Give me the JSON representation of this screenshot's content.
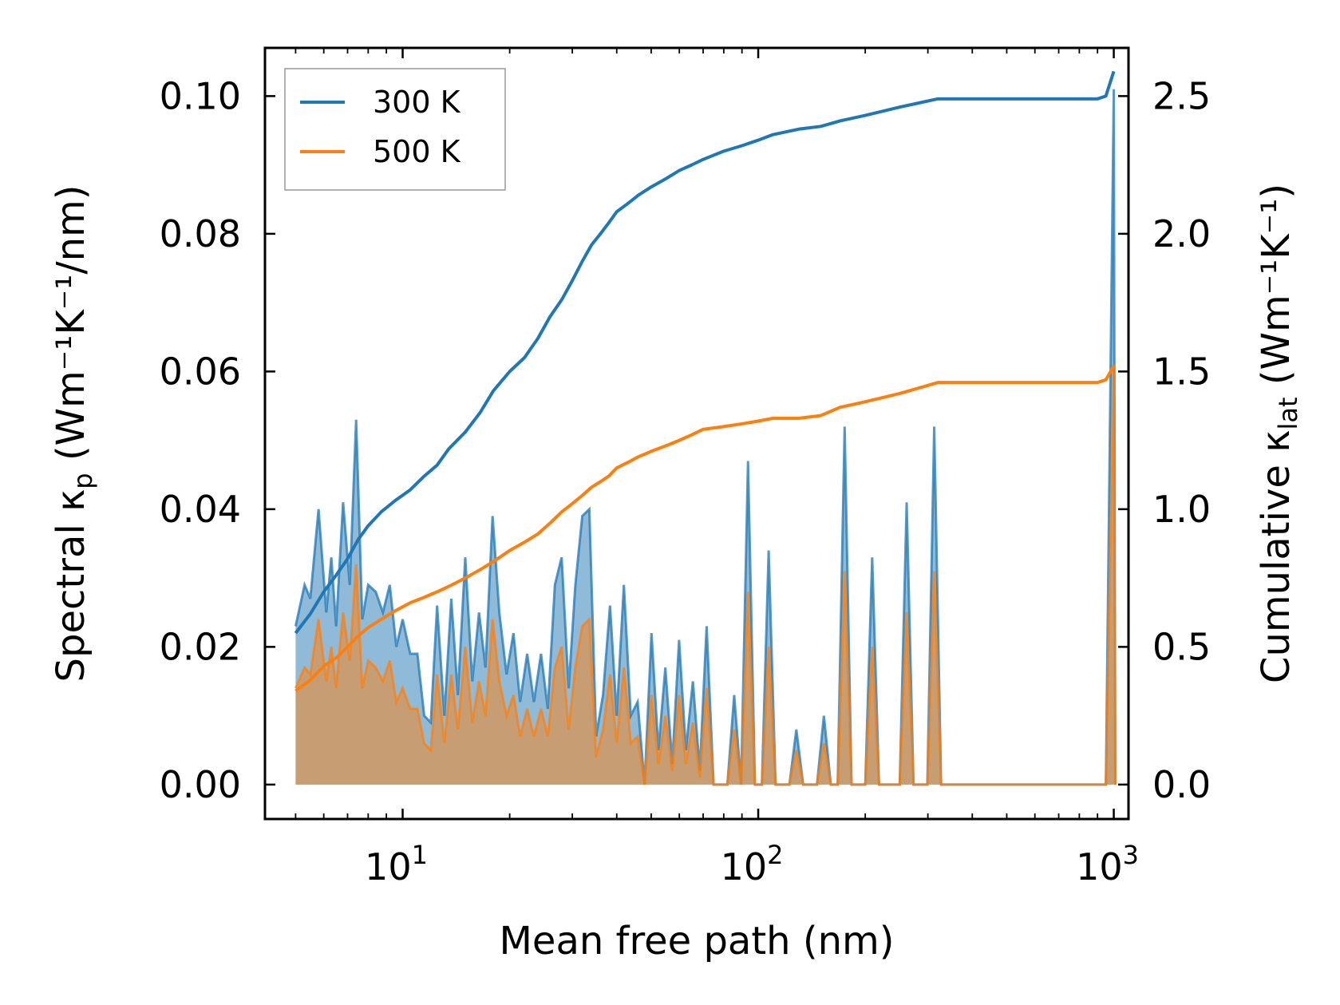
{
  "chart_data": {
    "type": "line",
    "xlabel": "Mean free path (nm)",
    "ylabel_left": {
      "main": "Spectral κ",
      "sub": "p",
      "units": " (Wm⁻¹K⁻¹/nm)"
    },
    "ylabel_right": {
      "main": "Cumulative κ",
      "sub": "lat",
      "units": " (Wm⁻¹K⁻¹)"
    },
    "xscale": "log",
    "xlim": [
      4.1,
      1100
    ],
    "ylim_left": [
      -0.005,
      0.107
    ],
    "ylim_right": [
      -0.125,
      2.675
    ],
    "x_ticks": [
      {
        "value": 10,
        "label": "10",
        "exp": "1"
      },
      {
        "value": 100,
        "label": "10",
        "exp": "2"
      },
      {
        "value": 1000,
        "label": "10",
        "exp": "3"
      }
    ],
    "y_ticks_left": [
      {
        "value": 0.0,
        "label": "0.00"
      },
      {
        "value": 0.02,
        "label": "0.02"
      },
      {
        "value": 0.04,
        "label": "0.04"
      },
      {
        "value": 0.06,
        "label": "0.06"
      },
      {
        "value": 0.08,
        "label": "0.08"
      },
      {
        "value": 0.1,
        "label": "0.10"
      }
    ],
    "y_ticks_right": [
      {
        "value": 0.0,
        "label": "0.0"
      },
      {
        "value": 0.5,
        "label": "0.5"
      },
      {
        "value": 1.0,
        "label": "1.0"
      },
      {
        "value": 1.5,
        "label": "1.5"
      },
      {
        "value": 2.0,
        "label": "2.0"
      },
      {
        "value": 2.5,
        "label": "2.5"
      }
    ],
    "legend": {
      "placement": "top-left",
      "entries": [
        {
          "label": "300 K",
          "color": "#1f77b4"
        },
        {
          "label": "500 K",
          "color": "#ff7f0e"
        }
      ]
    },
    "series": [
      {
        "name": "300 K",
        "color": "#1f77b4",
        "spectral": [
          [
            5.0,
            0.023
          ],
          [
            5.3,
            0.029
          ],
          [
            5.5,
            0.027
          ],
          [
            5.8,
            0.04
          ],
          [
            6.1,
            0.025
          ],
          [
            6.3,
            0.033
          ],
          [
            6.5,
            0.023
          ],
          [
            6.8,
            0.041
          ],
          [
            7.1,
            0.029
          ],
          [
            7.4,
            0.053
          ],
          [
            7.7,
            0.024
          ],
          [
            8.0,
            0.029
          ],
          [
            8.4,
            0.028
          ],
          [
            8.8,
            0.025
          ],
          [
            9.2,
            0.029
          ],
          [
            9.6,
            0.02
          ],
          [
            10.0,
            0.024
          ],
          [
            10.5,
            0.019
          ],
          [
            11.0,
            0.019
          ],
          [
            11.5,
            0.01
          ],
          [
            12.0,
            0.009
          ],
          [
            12.5,
            0.026
          ],
          [
            13.1,
            0.01
          ],
          [
            13.7,
            0.027
          ],
          [
            14.3,
            0.013
          ],
          [
            15.0,
            0.033
          ],
          [
            15.7,
            0.015
          ],
          [
            16.4,
            0.025
          ],
          [
            17.1,
            0.017
          ],
          [
            17.9,
            0.039
          ],
          [
            18.7,
            0.025
          ],
          [
            19.6,
            0.016
          ],
          [
            20.5,
            0.022
          ],
          [
            21.4,
            0.012
          ],
          [
            22.4,
            0.019
          ],
          [
            23.4,
            0.012
          ],
          [
            24.5,
            0.019
          ],
          [
            25.6,
            0.011
          ],
          [
            26.8,
            0.029
          ],
          [
            28.0,
            0.033
          ],
          [
            29.3,
            0.014
          ],
          [
            30.6,
            0.029
          ],
          [
            32.0,
            0.039
          ],
          [
            33.5,
            0.04
          ],
          [
            35.0,
            0.007
          ],
          [
            36.6,
            0.013
          ],
          [
            38.3,
            0.026
          ],
          [
            40.0,
            0.01
          ],
          [
            41.9,
            0.029
          ],
          [
            43.8,
            0.01
          ],
          [
            45.8,
            0.012
          ],
          [
            47.9,
            0.0
          ],
          [
            50.1,
            0.022
          ],
          [
            52.4,
            0.005
          ],
          [
            54.8,
            0.017
          ],
          [
            57.3,
            0.003
          ],
          [
            59.9,
            0.021
          ],
          [
            62.6,
            0.005
          ],
          [
            65.5,
            0.015
          ],
          [
            68.5,
            0.002
          ],
          [
            71.6,
            0.023
          ],
          [
            74.9,
            0.0
          ],
          [
            78.3,
            0.0
          ],
          [
            81.9,
            0.0
          ],
          [
            85.6,
            0.013
          ],
          [
            89.5,
            0.0
          ],
          [
            93.6,
            0.047
          ],
          [
            97.9,
            0.0
          ],
          [
            102.4,
            0.0
          ],
          [
            107.0,
            0.034
          ],
          [
            111.9,
            0.0
          ],
          [
            117.1,
            0.0
          ],
          [
            122.4,
            0.0
          ],
          [
            128.0,
            0.008
          ],
          [
            133.8,
            0.0
          ],
          [
            140.0,
            0.0
          ],
          [
            146.3,
            0.0
          ],
          [
            153.0,
            0.01
          ],
          [
            160.0,
            0.0
          ],
          [
            167.3,
            0.0
          ],
          [
            175.0,
            0.052
          ],
          [
            183.0,
            0.0
          ],
          [
            191.3,
            0.0
          ],
          [
            200.0,
            0.0
          ],
          [
            209.2,
            0.033
          ],
          [
            218.7,
            0.0
          ],
          [
            228.7,
            0.0
          ],
          [
            239.2,
            0.0
          ],
          [
            250.0,
            0.0
          ],
          [
            261.5,
            0.041
          ],
          [
            273.4,
            0.0
          ],
          [
            285.9,
            0.0
          ],
          [
            299.0,
            0.0
          ],
          [
            312.6,
            0.052
          ],
          [
            326.9,
            0.0
          ],
          [
            950.0,
            0.0
          ],
          [
            1000.0,
            0.101
          ],
          [
            1010.0,
            0.0
          ]
        ],
        "cumulative": [
          [
            5.0,
            0.55
          ],
          [
            5.5,
            0.62
          ],
          [
            6.0,
            0.7
          ],
          [
            6.5,
            0.76
          ],
          [
            7.0,
            0.82
          ],
          [
            7.5,
            0.89
          ],
          [
            8.0,
            0.94
          ],
          [
            8.7,
            0.99
          ],
          [
            9.5,
            1.03
          ],
          [
            10.5,
            1.07
          ],
          [
            11.5,
            1.12
          ],
          [
            12.5,
            1.16
          ],
          [
            13.5,
            1.22
          ],
          [
            15.0,
            1.28
          ],
          [
            16.5,
            1.35
          ],
          [
            18.0,
            1.43
          ],
          [
            20.0,
            1.5
          ],
          [
            22.0,
            1.55
          ],
          [
            24.0,
            1.62
          ],
          [
            26.0,
            1.7
          ],
          [
            28.0,
            1.76
          ],
          [
            30.0,
            1.83
          ],
          [
            32.0,
            1.9
          ],
          [
            34.0,
            1.96
          ],
          [
            36.0,
            2.0
          ],
          [
            38.0,
            2.04
          ],
          [
            40.0,
            2.08
          ],
          [
            43.0,
            2.11
          ],
          [
            46.0,
            2.14
          ],
          [
            50.0,
            2.17
          ],
          [
            55.0,
            2.2
          ],
          [
            60.0,
            2.23
          ],
          [
            65.0,
            2.25
          ],
          [
            70.0,
            2.27
          ],
          [
            80.0,
            2.3
          ],
          [
            90.0,
            2.32
          ],
          [
            100.0,
            2.34
          ],
          [
            110.0,
            2.36
          ],
          [
            130.0,
            2.38
          ],
          [
            150.0,
            2.39
          ],
          [
            170.0,
            2.41
          ],
          [
            200.0,
            2.43
          ],
          [
            250.0,
            2.46
          ],
          [
            320.0,
            2.49
          ],
          [
            500.0,
            2.49
          ],
          [
            900.0,
            2.49
          ],
          [
            950.0,
            2.5
          ],
          [
            1000.0,
            2.59
          ]
        ]
      },
      {
        "name": "500 K",
        "color": "#ff7f0e",
        "spectral": [
          [
            5.0,
            0.014
          ],
          [
            5.3,
            0.017
          ],
          [
            5.5,
            0.016
          ],
          [
            5.8,
            0.024
          ],
          [
            6.1,
            0.015
          ],
          [
            6.3,
            0.02
          ],
          [
            6.5,
            0.014
          ],
          [
            6.8,
            0.025
          ],
          [
            7.1,
            0.018
          ],
          [
            7.4,
            0.032
          ],
          [
            7.7,
            0.014
          ],
          [
            8.0,
            0.018
          ],
          [
            8.4,
            0.017
          ],
          [
            8.8,
            0.015
          ],
          [
            9.2,
            0.018
          ],
          [
            9.6,
            0.012
          ],
          [
            10.0,
            0.014
          ],
          [
            10.5,
            0.011
          ],
          [
            11.0,
            0.011
          ],
          [
            11.5,
            0.006
          ],
          [
            12.0,
            0.005
          ],
          [
            12.5,
            0.016
          ],
          [
            13.1,
            0.006
          ],
          [
            13.7,
            0.016
          ],
          [
            14.3,
            0.008
          ],
          [
            15.0,
            0.02
          ],
          [
            15.7,
            0.009
          ],
          [
            16.4,
            0.015
          ],
          [
            17.1,
            0.01
          ],
          [
            17.9,
            0.024
          ],
          [
            18.7,
            0.015
          ],
          [
            19.6,
            0.01
          ],
          [
            20.5,
            0.013
          ],
          [
            21.4,
            0.007
          ],
          [
            22.4,
            0.011
          ],
          [
            23.4,
            0.007
          ],
          [
            24.5,
            0.011
          ],
          [
            25.6,
            0.007
          ],
          [
            26.8,
            0.017
          ],
          [
            28.0,
            0.02
          ],
          [
            29.3,
            0.008
          ],
          [
            30.6,
            0.017
          ],
          [
            32.0,
            0.023
          ],
          [
            33.5,
            0.024
          ],
          [
            35.0,
            0.004
          ],
          [
            36.6,
            0.008
          ],
          [
            38.3,
            0.016
          ],
          [
            40.0,
            0.006
          ],
          [
            41.9,
            0.017
          ],
          [
            43.8,
            0.006
          ],
          [
            45.8,
            0.007
          ],
          [
            47.9,
            0.0
          ],
          [
            50.1,
            0.013
          ],
          [
            52.4,
            0.003
          ],
          [
            54.8,
            0.01
          ],
          [
            57.3,
            0.002
          ],
          [
            59.9,
            0.013
          ],
          [
            62.6,
            0.003
          ],
          [
            65.5,
            0.009
          ],
          [
            68.5,
            0.001
          ],
          [
            71.6,
            0.014
          ],
          [
            74.9,
            0.0
          ],
          [
            78.3,
            0.0
          ],
          [
            81.9,
            0.0
          ],
          [
            85.6,
            0.008
          ],
          [
            89.5,
            0.0
          ],
          [
            93.6,
            0.028
          ],
          [
            97.9,
            0.0
          ],
          [
            102.4,
            0.0
          ],
          [
            107.0,
            0.02
          ],
          [
            111.9,
            0.0
          ],
          [
            117.1,
            0.0
          ],
          [
            122.4,
            0.0
          ],
          [
            128.0,
            0.005
          ],
          [
            133.8,
            0.0
          ],
          [
            140.0,
            0.0
          ],
          [
            146.3,
            0.0
          ],
          [
            153.0,
            0.006
          ],
          [
            160.0,
            0.0
          ],
          [
            167.3,
            0.0
          ],
          [
            175.0,
            0.031
          ],
          [
            183.0,
            0.0
          ],
          [
            191.3,
            0.0
          ],
          [
            200.0,
            0.0
          ],
          [
            209.2,
            0.02
          ],
          [
            218.7,
            0.0
          ],
          [
            228.7,
            0.0
          ],
          [
            239.2,
            0.0
          ],
          [
            250.0,
            0.0
          ],
          [
            261.5,
            0.025
          ],
          [
            273.4,
            0.0
          ],
          [
            285.9,
            0.0
          ],
          [
            299.0,
            0.0
          ],
          [
            312.6,
            0.031
          ],
          [
            326.9,
            0.0
          ],
          [
            950.0,
            0.0
          ],
          [
            1000.0,
            0.061
          ],
          [
            1010.0,
            0.0
          ]
        ],
        "cumulative": [
          [
            5.0,
            0.34
          ],
          [
            5.5,
            0.38
          ],
          [
            6.0,
            0.43
          ],
          [
            6.5,
            0.46
          ],
          [
            7.0,
            0.5
          ],
          [
            7.5,
            0.54
          ],
          [
            8.0,
            0.57
          ],
          [
            8.7,
            0.6
          ],
          [
            9.5,
            0.63
          ],
          [
            10.5,
            0.66
          ],
          [
            11.5,
            0.68
          ],
          [
            12.5,
            0.7
          ],
          [
            13.5,
            0.72
          ],
          [
            15.0,
            0.75
          ],
          [
            16.5,
            0.78
          ],
          [
            18.0,
            0.81
          ],
          [
            20.0,
            0.85
          ],
          [
            22.0,
            0.88
          ],
          [
            24.0,
            0.91
          ],
          [
            26.0,
            0.95
          ],
          [
            28.0,
            0.99
          ],
          [
            30.0,
            1.02
          ],
          [
            32.0,
            1.05
          ],
          [
            34.0,
            1.08
          ],
          [
            36.0,
            1.1
          ],
          [
            38.0,
            1.12
          ],
          [
            40.0,
            1.15
          ],
          [
            43.0,
            1.17
          ],
          [
            46.0,
            1.19
          ],
          [
            50.0,
            1.21
          ],
          [
            55.0,
            1.23
          ],
          [
            60.0,
            1.25
          ],
          [
            65.0,
            1.27
          ],
          [
            70.0,
            1.29
          ],
          [
            80.0,
            1.3
          ],
          [
            90.0,
            1.31
          ],
          [
            100.0,
            1.32
          ],
          [
            110.0,
            1.33
          ],
          [
            130.0,
            1.33
          ],
          [
            150.0,
            1.34
          ],
          [
            170.0,
            1.37
          ],
          [
            200.0,
            1.39
          ],
          [
            250.0,
            1.42
          ],
          [
            320.0,
            1.46
          ],
          [
            500.0,
            1.46
          ],
          [
            900.0,
            1.46
          ],
          [
            950.0,
            1.47
          ],
          [
            1000.0,
            1.52
          ]
        ]
      }
    ]
  }
}
